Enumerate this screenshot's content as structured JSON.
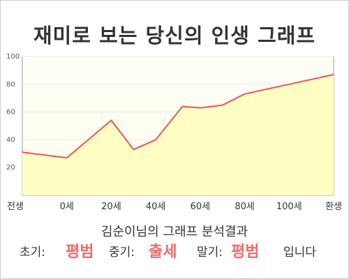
{
  "title": "재미로 보는 당신의 인생 그래프",
  "subtitle": "김순이님의 그래프 분석결과",
  "result": {
    "early_label": "초기:",
    "early_value": "평범",
    "middle_label": "중기:",
    "middle_value": "출세",
    "late_label": "말기:",
    "late_value": "평범",
    "ending": "입니다"
  },
  "chart_data": {
    "type": "area",
    "title": "재미로 보는 당신의 인생 그래프",
    "xlabel": "",
    "ylabel": "",
    "x_ticks": [
      "전생",
      "0세",
      "20세",
      "40세",
      "60세",
      "80세",
      "100세",
      "환생"
    ],
    "y_ticks": [
      "20",
      "40",
      "60",
      "80",
      "100"
    ],
    "ylim": [
      0,
      100
    ],
    "grid": true,
    "line_color": "#e8555b",
    "fill_color": "#ffffc4",
    "points": [
      {
        "x": 0,
        "y": 31
      },
      {
        "x": 1,
        "y": 27
      },
      {
        "x": 2,
        "y": 54
      },
      {
        "x": 2.5,
        "y": 33
      },
      {
        "x": 3,
        "y": 40
      },
      {
        "x": 3.6,
        "y": 64
      },
      {
        "x": 4,
        "y": 63
      },
      {
        "x": 4.5,
        "y": 65
      },
      {
        "x": 5,
        "y": 73
      },
      {
        "x": 6,
        "y": 80
      },
      {
        "x": 7,
        "y": 87
      }
    ]
  }
}
